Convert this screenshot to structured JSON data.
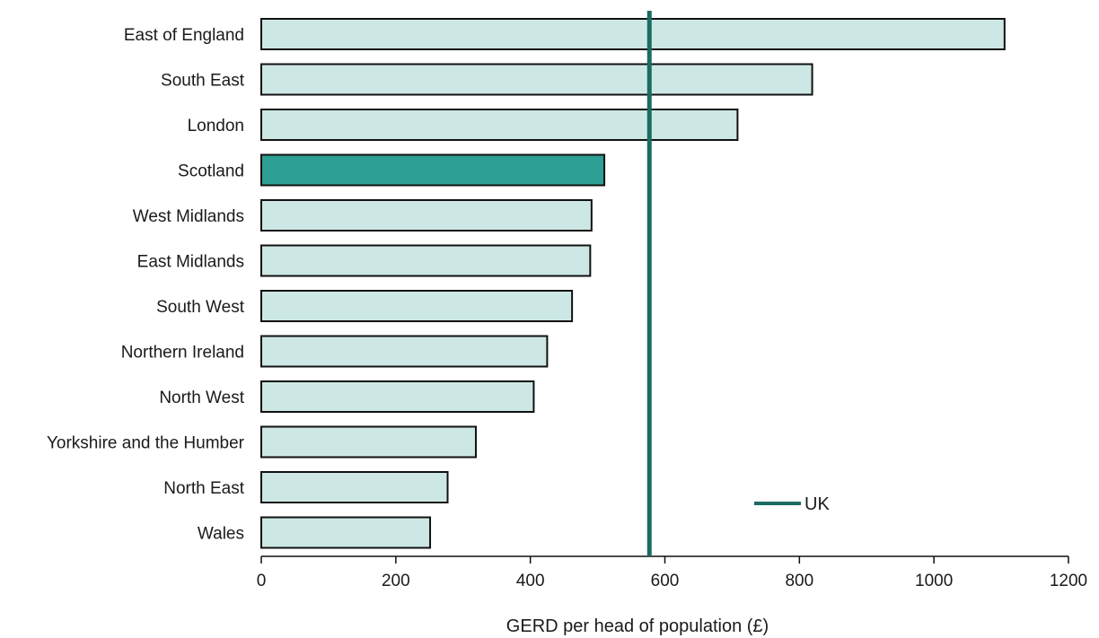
{
  "chart_data": {
    "type": "bar",
    "orientation": "horizontal",
    "title": "",
    "xlabel": "GERD per head of population (£)",
    "ylabel": "",
    "xlim": [
      0,
      1200
    ],
    "xticks": [
      0,
      200,
      400,
      600,
      800,
      1000,
      1200
    ],
    "grid": false,
    "categories": [
      "East of England",
      "South East",
      "London",
      "Scotland",
      "West Midlands",
      "East Midlands",
      "South West",
      "Northern Ireland",
      "North West",
      "Yorkshire and the Humber",
      "North East",
      "Wales"
    ],
    "values": [
      1105,
      819,
      708,
      510,
      491,
      489,
      462,
      425,
      405,
      319,
      277,
      251
    ],
    "highlight_category": "Scotland",
    "reference_line": {
      "name": "UK",
      "value": 577
    },
    "legend": {
      "placement": "bottom-right",
      "entries": [
        "UK"
      ]
    },
    "colors": {
      "bar_fill": "#cde8e4",
      "bar_stroke": "#111111",
      "highlight_fill": "#2e9f94",
      "reference_line": "#1c6b62",
      "axis": "#111111"
    }
  }
}
